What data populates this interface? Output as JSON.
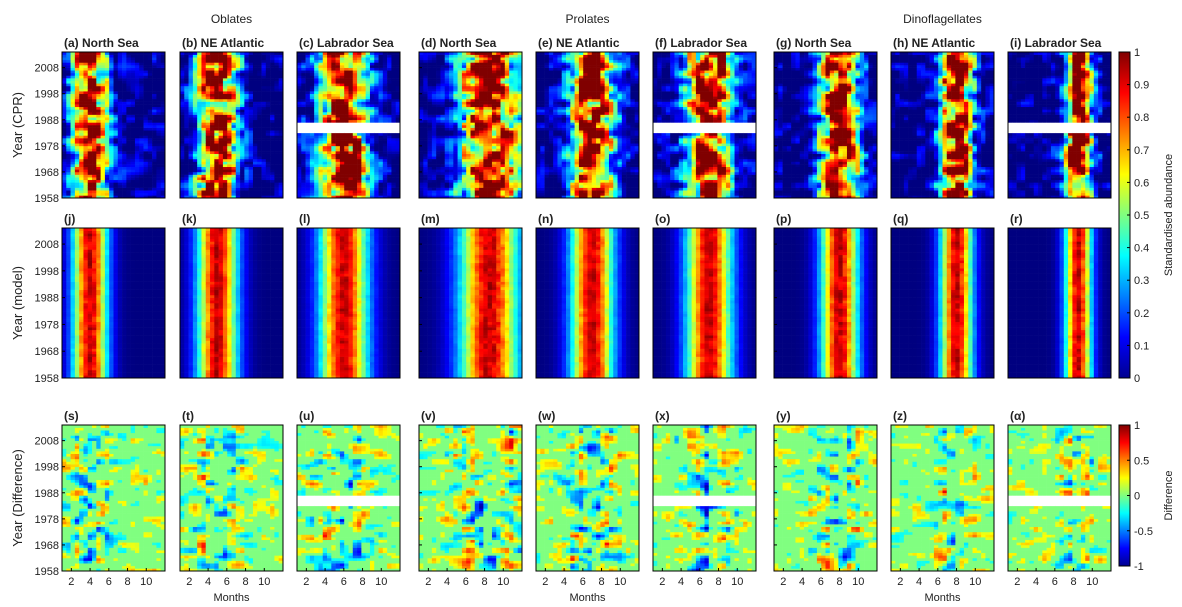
{
  "figure": {
    "group_titles": [
      "Oblates",
      "Prolates",
      "Dinoflagellates"
    ],
    "panel_rows": [
      {
        "ylabel": "Year (CPR)",
        "panels": [
          {
            "label": "(a) North Sea"
          },
          {
            "label": "(b) NE Atlantic"
          },
          {
            "label": "(c) Labrador Sea"
          },
          {
            "label": "(d) North Sea"
          },
          {
            "label": "(e) NE Atlantic"
          },
          {
            "label": "(f) Labrador Sea"
          },
          {
            "label": "(g) North Sea"
          },
          {
            "label": "(h) NE Atlantic"
          },
          {
            "label": "(i) Labrador Sea"
          }
        ]
      },
      {
        "ylabel": "Year (model)",
        "panels": [
          {
            "label": "(j)"
          },
          {
            "label": "(k)"
          },
          {
            "label": "(l)"
          },
          {
            "label": "(m)"
          },
          {
            "label": "(n)"
          },
          {
            "label": "(o)"
          },
          {
            "label": "(p)"
          },
          {
            "label": "(q)"
          },
          {
            "label": "(r)"
          }
        ]
      },
      {
        "ylabel": "Year (Difference)",
        "panels": [
          {
            "label": "(s)"
          },
          {
            "label": "(t)"
          },
          {
            "label": "(u)"
          },
          {
            "label": "(v)"
          },
          {
            "label": "(w)"
          },
          {
            "label": "(x)"
          },
          {
            "label": "(y)"
          },
          {
            "label": "(z)"
          },
          {
            "label": "(α)"
          }
        ]
      }
    ],
    "year_ticks": [
      "2008",
      "1998",
      "1988",
      "1978",
      "1968",
      "1958"
    ],
    "month_ticks": [
      "2",
      "4",
      "6",
      "8",
      "10"
    ],
    "xlabel": "Months",
    "colorbars": [
      {
        "label": "Standardised abundance",
        "ticks": [
          "1",
          "0.9",
          "0.8",
          "0.7",
          "0.6",
          "0.5",
          "0.4",
          "0.3",
          "0.2",
          "0.1",
          "0"
        ]
      },
      {
        "label": "Difference",
        "ticks": [
          "1",
          "0.5",
          "0",
          "-0.5",
          "-1"
        ]
      }
    ]
  },
  "chart_data": {
    "type": "heatmap",
    "title": "",
    "groups": [
      "Oblates",
      "Prolates",
      "Dinoflagellates"
    ],
    "regions": [
      "North Sea",
      "NE Atlantic",
      "Labrador Sea"
    ],
    "x": {
      "label": "Months",
      "range": [
        1,
        12
      ],
      "ticks": [
        2,
        4,
        6,
        8,
        10
      ]
    },
    "y": {
      "range": [
        1958,
        2014
      ],
      "ticks": [
        1958,
        1968,
        1978,
        1988,
        1998,
        2008
      ]
    },
    "rows": [
      {
        "ylabel": "Year (CPR)",
        "quantity": "Standardised abundance",
        "range": [
          0,
          1
        ]
      },
      {
        "ylabel": "Year (model)",
        "quantity": "Standardised abundance",
        "range": [
          0,
          1
        ]
      },
      {
        "ylabel": "Year (Difference)",
        "quantity": "Difference",
        "range": [
          -1,
          1
        ]
      }
    ],
    "estimated_seasonal_peak_month": {
      "Oblates": {
        "North Sea": 4,
        "NE Atlantic": 5,
        "Labrador Sea": 6
      },
      "Prolates": {
        "North Sea": 8.5,
        "NE Atlantic": 7,
        "Labrador Sea": 7
      },
      "Dinoflagellates": {
        "North Sea": 8,
        "NE Atlantic": 8,
        "Labrador Sea": 8.5
      }
    },
    "missing_data_years": {
      "Labrador Sea": [
        1983,
        1987
      ]
    }
  }
}
